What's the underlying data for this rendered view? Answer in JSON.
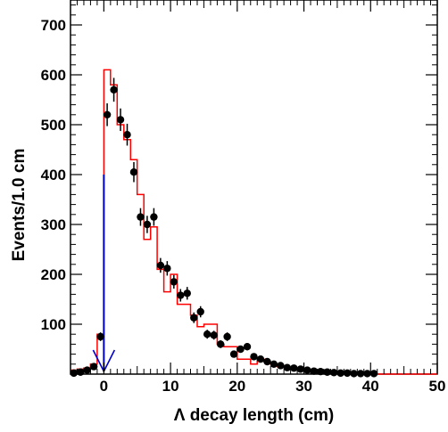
{
  "chart_data": {
    "type": "histogram",
    "title": "",
    "xlabel": "Λ decay length (cm)",
    "ylabel": "Events/1.0 cm",
    "xlim": [
      -5,
      50
    ],
    "ylim": [
      0,
      750
    ],
    "x_ticks": [
      0,
      10,
      20,
      30,
      40,
      50
    ],
    "y_ticks": [
      100,
      200,
      300,
      400,
      500,
      600,
      700
    ],
    "grid": false,
    "legend": "none",
    "colors": {
      "histogram": "#ff0000",
      "data_points": "#000000",
      "cut_marker": "#0000cc"
    },
    "series": [
      {
        "kind": "data_points_with_errors",
        "x": [
          -4.5,
          -3.5,
          -2.5,
          -1.5,
          -0.5,
          0.5,
          1.5,
          2.5,
          3.5,
          4.5,
          5.5,
          6.5,
          7.5,
          8.5,
          9.5,
          10.5,
          11.5,
          12.5,
          13.5,
          14.5,
          15.5,
          16.5,
          17.5,
          18.5,
          19.5,
          20.5,
          21.5,
          22.5,
          23.5,
          24.5,
          25.5,
          26.5,
          27.5,
          28.5,
          29.5,
          30.5,
          31.5,
          32.5,
          33.5,
          34.5,
          35.5,
          36.5,
          37.5,
          38.5,
          39.5,
          40.5
        ],
        "y": [
          2,
          4,
          8,
          15,
          75,
          520,
          570,
          510,
          480,
          405,
          315,
          300,
          315,
          218,
          212,
          185,
          158,
          162,
          113,
          125,
          80,
          78,
          60,
          75,
          40,
          50,
          55,
          35,
          30,
          25,
          20,
          17,
          13,
          12,
          10,
          8,
          6,
          5,
          4,
          3,
          2,
          2,
          1,
          1,
          1,
          1
        ]
      },
      {
        "kind": "step_histogram",
        "bin_edges": [
          -5,
          -4,
          -3,
          -2,
          -1,
          0,
          1,
          2,
          3,
          4,
          5,
          6,
          7,
          8,
          9,
          10,
          11,
          12,
          13,
          14,
          15,
          16,
          17,
          18,
          19,
          20,
          21,
          22,
          23,
          24,
          25,
          26,
          27,
          28,
          29,
          30,
          31,
          32,
          33,
          34,
          35,
          36,
          37,
          38,
          39,
          40,
          41,
          42,
          43,
          44,
          45,
          46,
          47,
          48,
          49,
          50
        ],
        "values": [
          8,
          10,
          12,
          20,
          80,
          610,
          580,
          500,
          470,
          430,
          360,
          270,
          295,
          210,
          165,
          200,
          140,
          140,
          118,
          95,
          100,
          100,
          60,
          55,
          55,
          30,
          30,
          20,
          30,
          25,
          20,
          15,
          13,
          12,
          10,
          9,
          6,
          5,
          4,
          3,
          2,
          2,
          1,
          1,
          1,
          0,
          0,
          0,
          0,
          0,
          0,
          0,
          0,
          0,
          0
        ]
      }
    ],
    "annotations": [
      {
        "kind": "cut_arrow",
        "x": 0,
        "y_top": 400,
        "direction": "down",
        "color": "#0000cc"
      }
    ]
  }
}
